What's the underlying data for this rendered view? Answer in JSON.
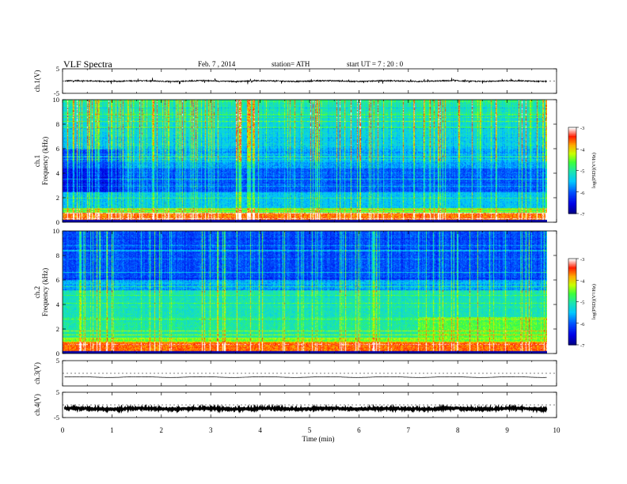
{
  "header": {
    "title": "VLF  Spectra",
    "date": "Feb. 7  , 2014",
    "station": "station= ATH",
    "start": "start  UT  =    7  : 20 : 0"
  },
  "chart_data": [
    {
      "type": "line",
      "panel": "ch1",
      "ylabel": "ch.1(V)",
      "ylim": [
        -5,
        5
      ],
      "yticks": [
        "5",
        "-5"
      ],
      "xlim": [
        0,
        10
      ],
      "trace": {
        "level": 0.0,
        "noise": 0.25,
        "spike_amp": 1.2,
        "color": "#000000"
      }
    },
    {
      "type": "heatmap",
      "panel": "spec1",
      "ylabel": "Frequency  (kHz)",
      "ylabel_prefix": "ch.1",
      "ylim": [
        0,
        10
      ],
      "yticks": [
        "0",
        "2",
        "4",
        "6",
        "8",
        "10"
      ],
      "xlim": [
        0,
        10
      ],
      "data_end_min": 9.8,
      "value_range": [
        -7,
        -3
      ],
      "colorbar": {
        "label": "log(PSD)(V²/Hz)",
        "ticks": [
          "-3",
          "-4",
          "-5",
          "-6",
          "-7"
        ]
      },
      "colors": [
        "#000090",
        "#0040ff",
        "#00c0ff",
        "#20e0c0",
        "#40ff40",
        "#d0ff00",
        "#ffa000",
        "#ff2000",
        "#ffffff"
      ]
    },
    {
      "type": "heatmap",
      "panel": "spec2",
      "ylabel": "Frequency  (kHz)",
      "ylabel_prefix": "ch.2",
      "ylim": [
        0,
        10
      ],
      "yticks": [
        "0",
        "2",
        "4",
        "6",
        "8",
        "10"
      ],
      "xlim": [
        0,
        10
      ],
      "data_end_min": 9.8,
      "value_range": [
        -7,
        -3
      ],
      "colorbar": {
        "label": "log(PSD)(V²/Hz)",
        "ticks": [
          "-3",
          "-4",
          "-5",
          "-6",
          "-7"
        ]
      }
    },
    {
      "type": "line",
      "panel": "ch3",
      "ylabel": "ch.3(V)",
      "ylim": [
        -5,
        5
      ],
      "yticks": [
        "5"
      ],
      "xlim": [
        0,
        10
      ],
      "trace": {
        "level": -1.5,
        "noise": 0.02,
        "spike_amp": 0,
        "color": "#000000"
      }
    },
    {
      "type": "line",
      "panel": "ch4",
      "ylabel": "ch.4(V)",
      "ylim": [
        -5,
        5
      ],
      "yticks": [
        "5",
        "-5"
      ],
      "xlim": [
        0,
        10
      ],
      "trace": {
        "level": -1.5,
        "noise": 0.3,
        "spike_amp": 0,
        "color": "#000000"
      }
    }
  ],
  "xaxis": {
    "label": "Time  (min)",
    "ticks": [
      "0",
      "1",
      "2",
      "3",
      "4",
      "5",
      "6",
      "7",
      "8",
      "9",
      "10"
    ]
  }
}
